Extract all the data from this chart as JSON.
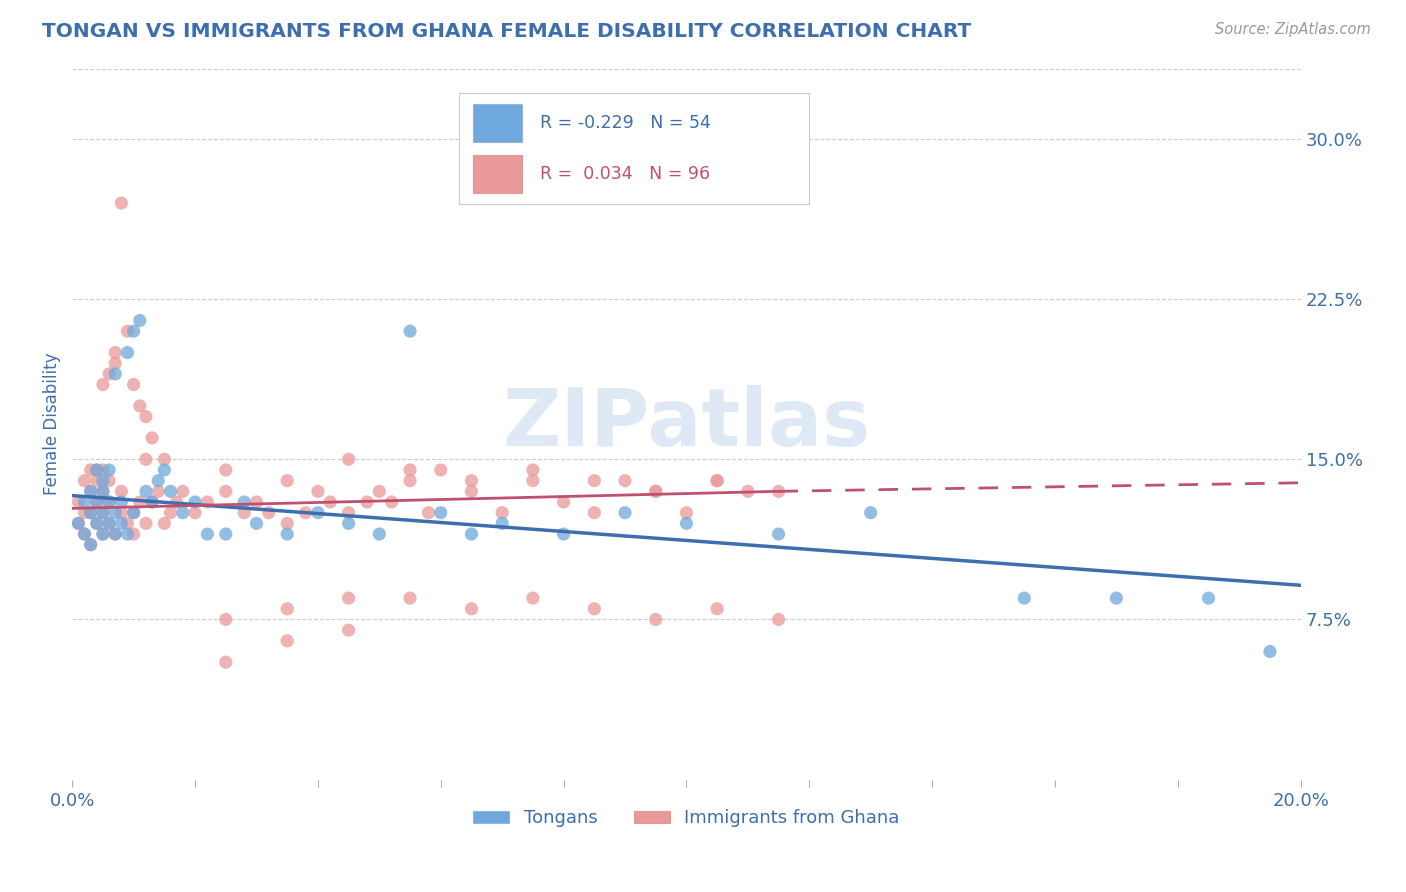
{
  "title": "TONGAN VS IMMIGRANTS FROM GHANA FEMALE DISABILITY CORRELATION CHART",
  "source": "Source: ZipAtlas.com",
  "ylabel": "Female Disability",
  "legend_label_blue": "Tongans",
  "legend_label_pink": "Immigrants from Ghana",
  "r_blue": -0.229,
  "n_blue": 54,
  "r_pink": 0.034,
  "n_pink": 96,
  "color_blue": "#6fa8dc",
  "color_pink": "#ea9999",
  "color_blue_line": "#3d6faf",
  "color_pink_line": "#c0516e",
  "xlim": [
    0.0,
    0.2
  ],
  "ylim": [
    0.0,
    0.333
  ],
  "ytick_values": [
    0.075,
    0.15,
    0.225,
    0.3
  ],
  "ytick_labels": [
    "7.5%",
    "15.0%",
    "22.5%",
    "30.0%"
  ],
  "background_color": "#ffffff",
  "grid_color": "#cccccc",
  "watermark": "ZIPatlas",
  "title_color": "#3d6faf",
  "tick_label_color": "#3d6faf",
  "blue_line_start_y": 0.133,
  "blue_line_end_y": 0.091,
  "pink_line_start_y": 0.127,
  "pink_line_end_solid_x": 0.115,
  "pink_line_end_solid_y": 0.135,
  "pink_line_end_dash_y": 0.139,
  "blue_scatter_x": [
    0.001,
    0.002,
    0.002,
    0.003,
    0.003,
    0.003,
    0.004,
    0.004,
    0.004,
    0.005,
    0.005,
    0.005,
    0.005,
    0.006,
    0.006,
    0.006,
    0.007,
    0.007,
    0.007,
    0.008,
    0.008,
    0.009,
    0.009,
    0.01,
    0.01,
    0.011,
    0.012,
    0.013,
    0.014,
    0.015,
    0.016,
    0.018,
    0.02,
    0.022,
    0.025,
    0.028,
    0.03,
    0.035,
    0.04,
    0.045,
    0.05,
    0.055,
    0.06,
    0.065,
    0.07,
    0.08,
    0.09,
    0.1,
    0.115,
    0.13,
    0.155,
    0.17,
    0.185,
    0.195
  ],
  "blue_scatter_y": [
    0.12,
    0.115,
    0.13,
    0.11,
    0.125,
    0.135,
    0.12,
    0.13,
    0.145,
    0.115,
    0.125,
    0.14,
    0.135,
    0.12,
    0.13,
    0.145,
    0.115,
    0.125,
    0.19,
    0.12,
    0.13,
    0.115,
    0.2,
    0.21,
    0.125,
    0.215,
    0.135,
    0.13,
    0.14,
    0.145,
    0.135,
    0.125,
    0.13,
    0.115,
    0.115,
    0.13,
    0.12,
    0.115,
    0.125,
    0.12,
    0.115,
    0.21,
    0.125,
    0.115,
    0.12,
    0.115,
    0.125,
    0.12,
    0.115,
    0.125,
    0.085,
    0.085,
    0.085,
    0.06
  ],
  "pink_scatter_x": [
    0.001,
    0.001,
    0.002,
    0.002,
    0.002,
    0.003,
    0.003,
    0.003,
    0.003,
    0.004,
    0.004,
    0.004,
    0.004,
    0.005,
    0.005,
    0.005,
    0.005,
    0.005,
    0.006,
    0.006,
    0.006,
    0.006,
    0.007,
    0.007,
    0.007,
    0.008,
    0.008,
    0.008,
    0.009,
    0.009,
    0.01,
    0.01,
    0.01,
    0.011,
    0.011,
    0.012,
    0.012,
    0.013,
    0.013,
    0.014,
    0.015,
    0.015,
    0.016,
    0.017,
    0.018,
    0.02,
    0.022,
    0.025,
    0.028,
    0.03,
    0.032,
    0.035,
    0.038,
    0.04,
    0.042,
    0.045,
    0.048,
    0.05,
    0.052,
    0.055,
    0.058,
    0.06,
    0.065,
    0.07,
    0.075,
    0.08,
    0.085,
    0.09,
    0.095,
    0.1,
    0.105,
    0.11,
    0.012,
    0.025,
    0.035,
    0.045,
    0.055,
    0.065,
    0.075,
    0.085,
    0.095,
    0.105,
    0.115,
    0.025,
    0.035,
    0.045,
    0.055,
    0.065,
    0.075,
    0.085,
    0.095,
    0.105,
    0.115,
    0.025,
    0.035,
    0.045
  ],
  "pink_scatter_y": [
    0.12,
    0.13,
    0.115,
    0.125,
    0.14,
    0.11,
    0.125,
    0.135,
    0.145,
    0.12,
    0.13,
    0.14,
    0.145,
    0.115,
    0.125,
    0.135,
    0.145,
    0.185,
    0.12,
    0.13,
    0.14,
    0.19,
    0.115,
    0.2,
    0.195,
    0.125,
    0.135,
    0.27,
    0.12,
    0.21,
    0.115,
    0.125,
    0.185,
    0.13,
    0.175,
    0.12,
    0.17,
    0.13,
    0.16,
    0.135,
    0.12,
    0.15,
    0.125,
    0.13,
    0.135,
    0.125,
    0.13,
    0.135,
    0.125,
    0.13,
    0.125,
    0.12,
    0.125,
    0.135,
    0.13,
    0.125,
    0.13,
    0.135,
    0.13,
    0.14,
    0.125,
    0.145,
    0.135,
    0.125,
    0.14,
    0.13,
    0.125,
    0.14,
    0.135,
    0.125,
    0.14,
    0.135,
    0.15,
    0.145,
    0.14,
    0.15,
    0.145,
    0.14,
    0.145,
    0.14,
    0.135,
    0.14,
    0.135,
    0.075,
    0.08,
    0.085,
    0.085,
    0.08,
    0.085,
    0.08,
    0.075,
    0.08,
    0.075,
    0.055,
    0.065,
    0.07
  ]
}
